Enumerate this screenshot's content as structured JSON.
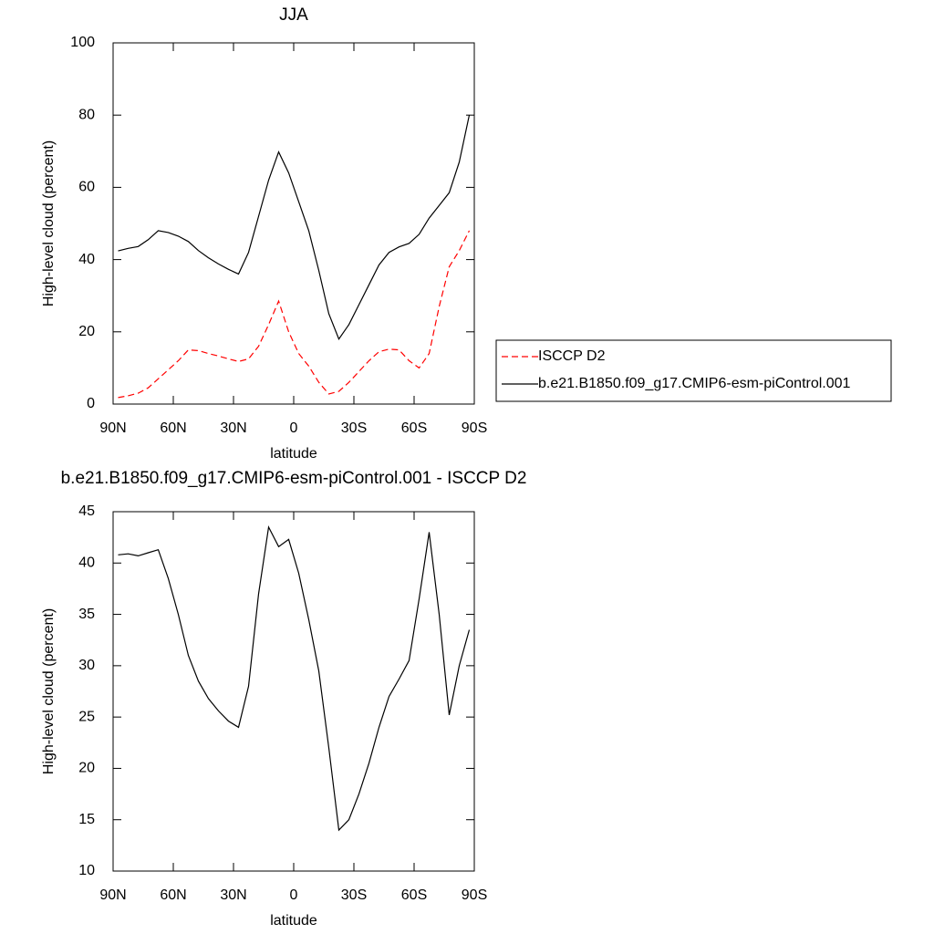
{
  "chart_data": [
    {
      "type": "line",
      "title": "JJA",
      "xlabel": "latitude",
      "ylabel": "High-level cloud (percent)",
      "x": [
        87.5,
        82.5,
        77.5,
        72.5,
        67.5,
        62.5,
        57.5,
        52.5,
        47.5,
        42.5,
        37.5,
        32.5,
        27.5,
        22.5,
        17.5,
        12.5,
        7.5,
        2.5,
        -2.5,
        -7.5,
        -12.5,
        -17.5,
        -22.5,
        -27.5,
        -32.5,
        -37.5,
        -42.5,
        -47.5,
        -52.5,
        -57.5,
        -62.5,
        -67.5,
        -72.5,
        -77.5,
        -82.5,
        -87.5
      ],
      "series": [
        {
          "name": "ISCCP D2",
          "color": "#ff0000",
          "line_style": "dashed",
          "values": [
            1.8,
            2.3,
            3.0,
            4.5,
            7,
            9.5,
            12,
            15,
            14.8,
            14,
            13.3,
            12.5,
            11.8,
            12.5,
            16,
            22,
            28.5,
            20,
            14,
            10.5,
            6,
            2.8,
            3.5,
            6,
            9,
            12,
            14.5,
            15.2,
            15,
            12,
            10,
            14,
            27,
            38,
            42.5,
            48
          ]
        },
        {
          "name": "b.e21.B1850.f09_g17.CMIP6-esm-piControl.001",
          "color": "#000000",
          "line_style": "solid",
          "values": [
            42.4,
            43.1,
            43.6,
            45.5,
            48,
            47.5,
            46.5,
            45,
            42.5,
            40.5,
            38.8,
            37.3,
            36,
            42,
            52,
            62,
            69.8,
            64,
            56,
            48,
            37,
            25,
            18,
            22,
            27.5,
            33,
            38.5,
            42,
            43.5,
            44.5,
            47,
            51.5,
            55,
            58.5,
            67,
            80
          ]
        }
      ],
      "xlim": [
        90,
        -90
      ],
      "xticks": [
        {
          "value": 90,
          "label": "90N"
        },
        {
          "value": 60,
          "label": "60N"
        },
        {
          "value": 30,
          "label": "30N"
        },
        0,
        {
          "value": -30,
          "label": "30S"
        },
        {
          "value": -60,
          "label": "60S"
        },
        {
          "value": -90,
          "label": "90S"
        }
      ],
      "ylim": [
        0,
        100
      ],
      "yticks": [
        0,
        20,
        40,
        60,
        80,
        100
      ],
      "legend": "right"
    },
    {
      "type": "line",
      "title": "b.e21.B1850.f09_g17.CMIP6-esm-piControl.001 - ISCCP D2",
      "xlabel": "latitude",
      "ylabel": "High-level cloud (percent)",
      "x": [
        87.5,
        82.5,
        77.5,
        72.5,
        67.5,
        62.5,
        57.5,
        52.5,
        47.5,
        42.5,
        37.5,
        32.5,
        27.5,
        22.5,
        17.5,
        12.5,
        7.5,
        2.5,
        -2.5,
        -7.5,
        -12.5,
        -17.5,
        -22.5,
        -27.5,
        -32.5,
        -37.5,
        -42.5,
        -47.5,
        -52.5,
        -57.5,
        -62.5,
        -67.5,
        -72.5,
        -77.5,
        -82.5,
        -87.5
      ],
      "series": [
        {
          "color": "#000000",
          "line_style": "solid",
          "values": [
            40.8,
            40.9,
            40.7,
            41,
            41.3,
            38.5,
            35,
            31,
            28.5,
            26.8,
            25.6,
            24.6,
            24,
            28,
            37,
            43.5,
            41.6,
            42.3,
            39,
            34.5,
            29.5,
            22,
            14,
            15,
            17.5,
            20.5,
            24,
            27,
            28.7,
            30.5,
            36.5,
            43,
            35,
            25.2,
            30,
            33.5
          ]
        }
      ],
      "xlim": [
        90,
        -90
      ],
      "xticks": [
        {
          "value": 90,
          "label": "90N"
        },
        {
          "value": 60,
          "label": "60N"
        },
        {
          "value": 30,
          "label": "30N"
        },
        0,
        {
          "value": -30,
          "label": "30S"
        },
        {
          "value": -60,
          "label": "60S"
        },
        {
          "value": -90,
          "label": "90S"
        }
      ],
      "ylim": [
        10,
        45
      ],
      "yticks": [
        10,
        15,
        20,
        25,
        30,
        35,
        40,
        45
      ]
    }
  ]
}
